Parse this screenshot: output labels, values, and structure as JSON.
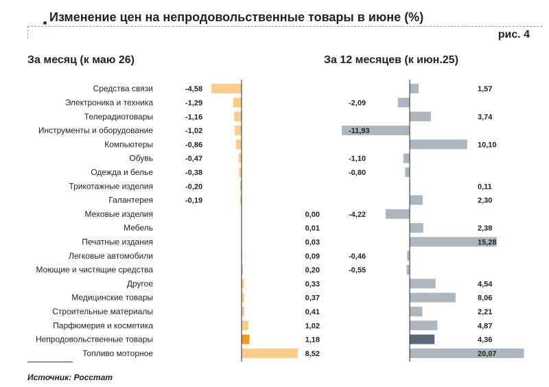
{
  "header": {
    "title": "Изменение цен на непродовольственные товары в июне (%)",
    "figure_label": "рис. 4"
  },
  "footer": {
    "source": "Источник: Росстат"
  },
  "colors": {
    "orange_bar": "#FDCB8B",
    "orange_highlight": "#F39A1A",
    "gray_bar": "#AEB6BF",
    "gray_highlight": "#5A6878",
    "axis": "#222222"
  },
  "chart_data": [
    {
      "type": "bar",
      "orientation": "horizontal",
      "title": "За месяц (к маю 26)",
      "categories": [
        "Средства связи",
        "Электроника и техника",
        "Телерадиотовары",
        "Инструменты и оборудование",
        "Компьютеры",
        "Обувь",
        "Одежда и белье",
        "Трикотажные изделия",
        "Галантерея",
        "Меховые изделия",
        "Мебель",
        "Печатные издания",
        "Легковые автомобили",
        "Моющие и чистящие средства",
        "Другое",
        "Медицинские товары",
        "Строительные материалы",
        "Парфюмерия и косметика",
        "Непродовольственные товары",
        "Топливо моторное"
      ],
      "values": [
        -4.58,
        -1.29,
        -1.16,
        -1.02,
        -0.86,
        -0.47,
        -0.38,
        -0.2,
        -0.19,
        0.0,
        0.01,
        0.03,
        0.09,
        0.2,
        0.33,
        0.37,
        0.41,
        1.02,
        1.18,
        8.52
      ],
      "labels": [
        "-4,58",
        "-1,29",
        "-1,16",
        "-1,02",
        "-0,86",
        "-0,47",
        "-0,38",
        "-0,20",
        "-0,19",
        "0,00",
        "0,01",
        "0,03",
        "0,09",
        "0,20",
        "0,33",
        "0,37",
        "0,41",
        "1,02",
        "1,18",
        "8,52"
      ],
      "highlight_index": 18,
      "xlim": [
        -4.58,
        8.52
      ]
    },
    {
      "type": "bar",
      "orientation": "horizontal",
      "title": "За 12 месяцев (к июн.25)",
      "categories": [
        "Средства связи",
        "Электроника и техника",
        "Телерадиотовары",
        "Инструменты и оборудование",
        "Компьютеры",
        "Обувь",
        "Одежда и белье",
        "Трикотажные изделия",
        "Галантерея",
        "Меховые изделия",
        "Мебель",
        "Печатные издания",
        "Легковые автомобили",
        "Моющие и чистящие средства",
        "Другое",
        "Медицинские товары",
        "Строительные материалы",
        "Парфюмерия и косметика",
        "Непродовольственные товары",
        "Топливо моторное"
      ],
      "values": [
        1.57,
        -2.09,
        3.74,
        -11.93,
        10.1,
        -1.1,
        -0.8,
        0.11,
        2.3,
        -4.22,
        2.38,
        15.28,
        -0.46,
        -0.55,
        4.54,
        8.06,
        2.21,
        4.87,
        4.36,
        20.07
      ],
      "labels": [
        "1,57",
        "-2,09",
        "3,74",
        "-11,93",
        "10,10",
        "-1,10",
        "-0,80",
        "0,11",
        "2,30",
        "-4,22",
        "2,38",
        "15,28",
        "-0,46",
        "-0,55",
        "4,54",
        "8,06",
        "2,21",
        "4,87",
        "4,36",
        "20,07"
      ],
      "highlight_index": 18,
      "xlim": [
        -11.93,
        20.07
      ]
    }
  ]
}
